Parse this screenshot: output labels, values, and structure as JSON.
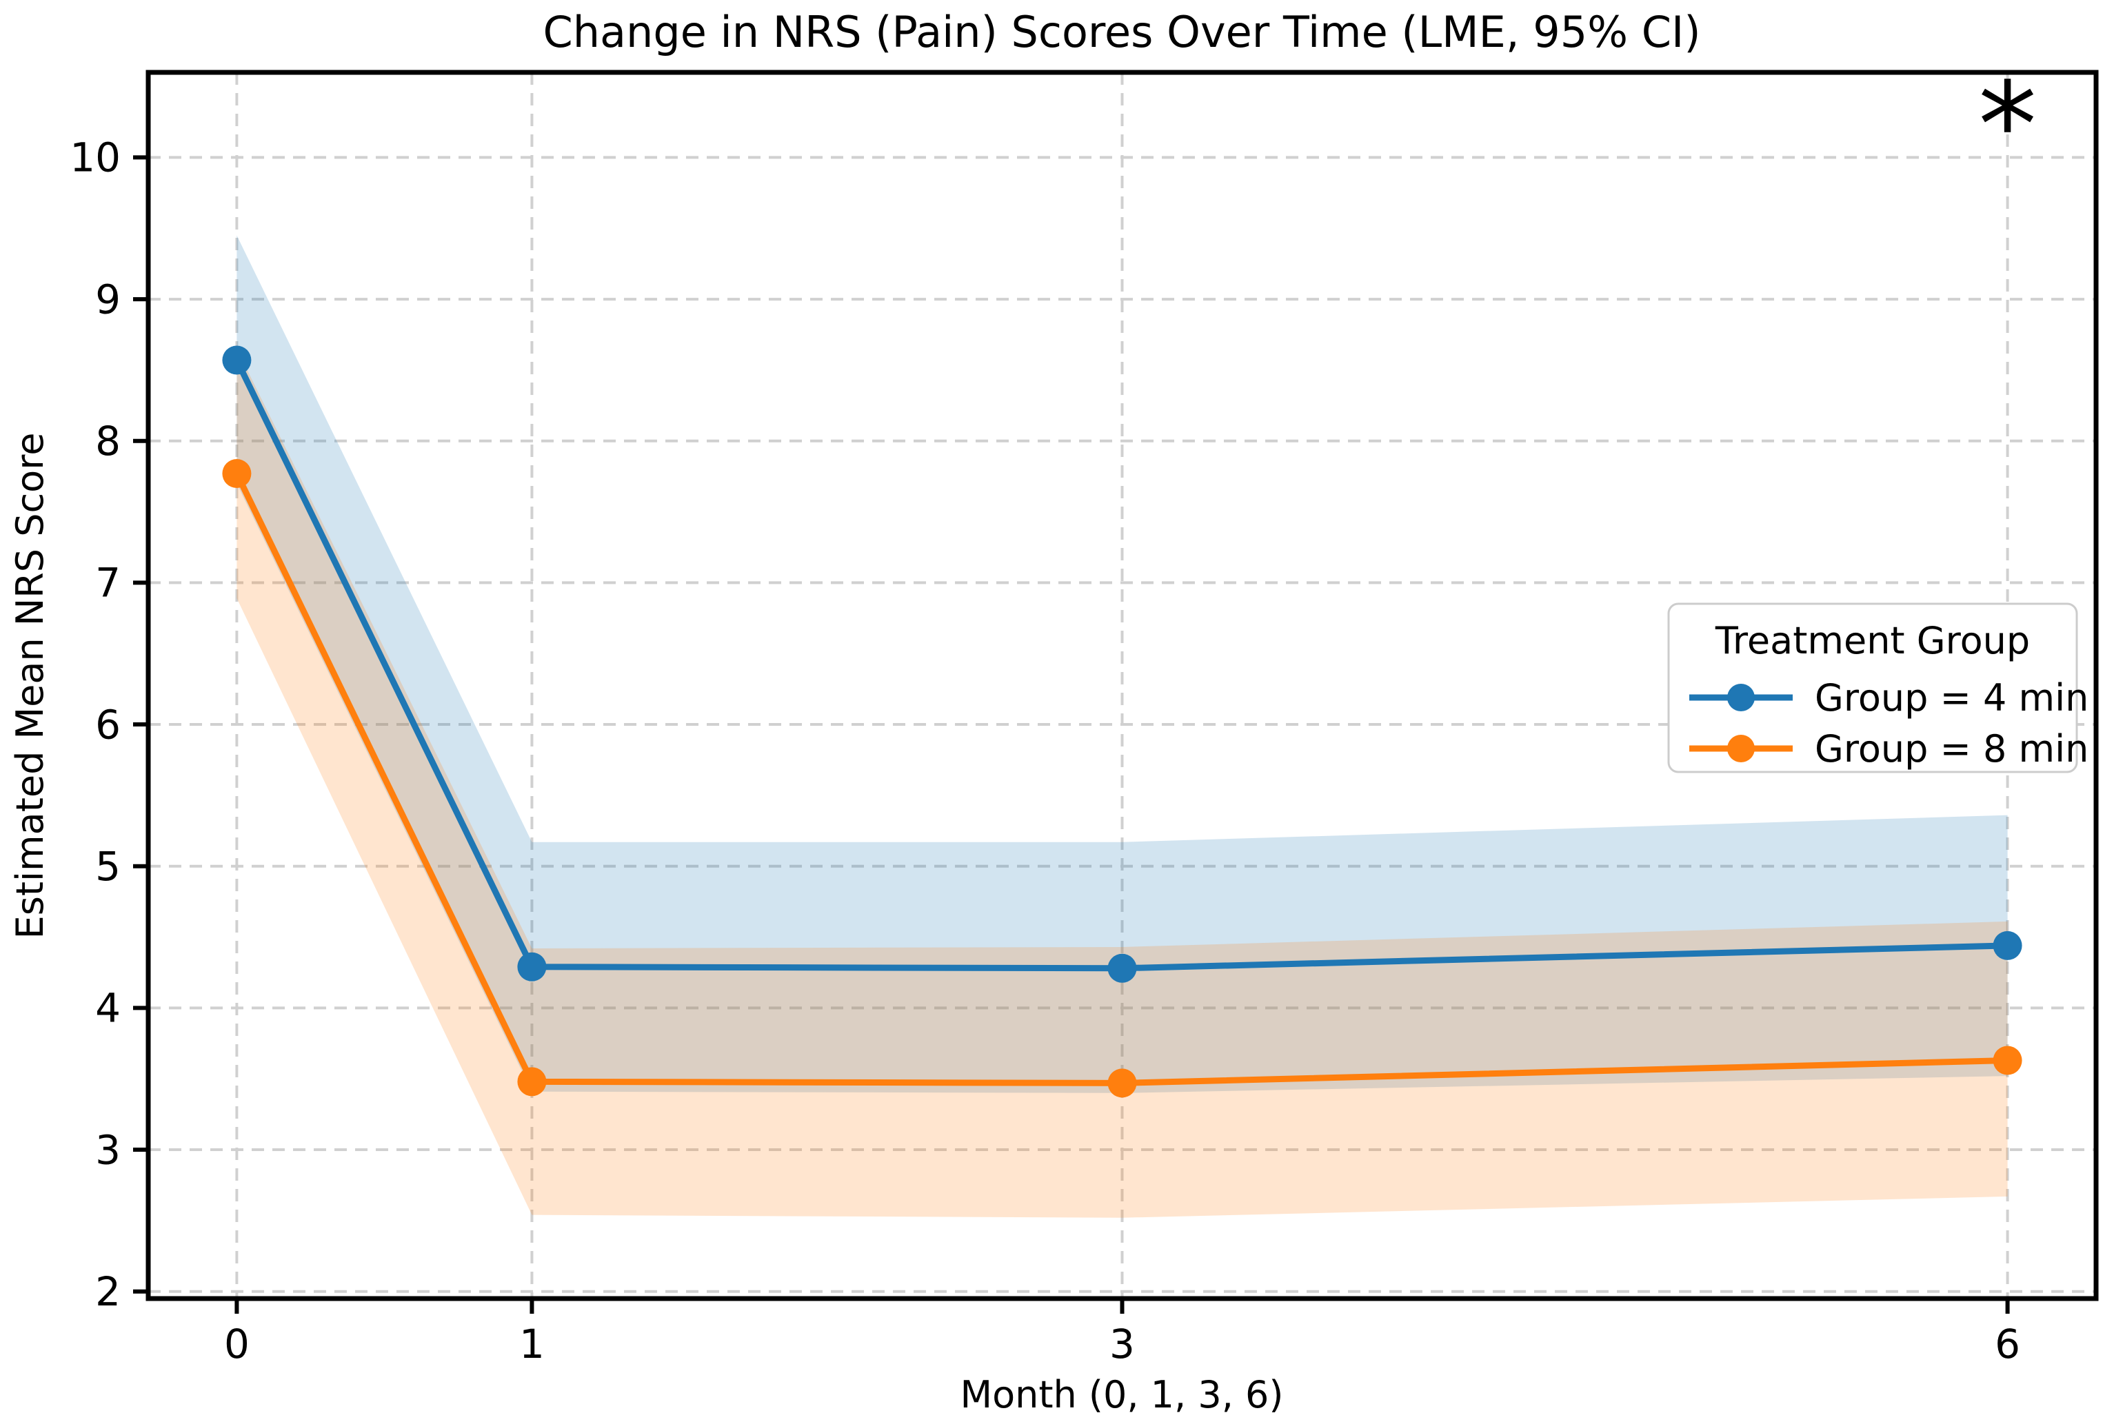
{
  "figure": {
    "background": "#ffffff"
  },
  "chart_data": {
    "type": "line",
    "title": "Change in NRS (Pain) Scores Over Time (LME, 95% CI)",
    "xlabel": "Month (0, 1, 3, 6)",
    "ylabel": "Estimated Mean NRS Score",
    "x": [
      0,
      1,
      3,
      6
    ],
    "xticks": [
      "0",
      "1",
      "3",
      "6"
    ],
    "xtick_values": [
      0,
      1,
      3,
      6
    ],
    "yticks": [
      "2",
      "3",
      "4",
      "5",
      "6",
      "7",
      "8",
      "9",
      "10"
    ],
    "ytick_values": [
      2,
      3,
      4,
      5,
      6,
      7,
      8,
      9,
      10
    ],
    "xlim": [
      -0.3,
      6.3
    ],
    "ylim": [
      1.95,
      10.6
    ],
    "grid": true,
    "grid_style": "dashed",
    "grid_color": "#d0d0d0",
    "legend": {
      "title": "Treatment Group",
      "position": "center-right",
      "border_color": "#cccccc"
    },
    "series": [
      {
        "name": "Group = 4 min",
        "color": "#1f77b4",
        "values": [
          8.57,
          4.29,
          4.28,
          4.44
        ],
        "ci_upper": [
          9.45,
          5.17,
          5.17,
          5.36
        ],
        "ci_lower": [
          7.7,
          3.41,
          3.4,
          3.52
        ],
        "band_opacity": 0.2
      },
      {
        "name": "Group = 8 min",
        "color": "#ff7f0e",
        "values": [
          7.77,
          3.48,
          3.47,
          3.63
        ],
        "ci_upper": [
          8.65,
          4.42,
          4.43,
          4.61
        ],
        "ci_lower": [
          6.89,
          2.54,
          2.52,
          2.67
        ],
        "band_opacity": 0.2
      }
    ],
    "annotations": [
      {
        "text": "*",
        "x": 6,
        "y": 10.35,
        "color": "#000000"
      }
    ]
  }
}
